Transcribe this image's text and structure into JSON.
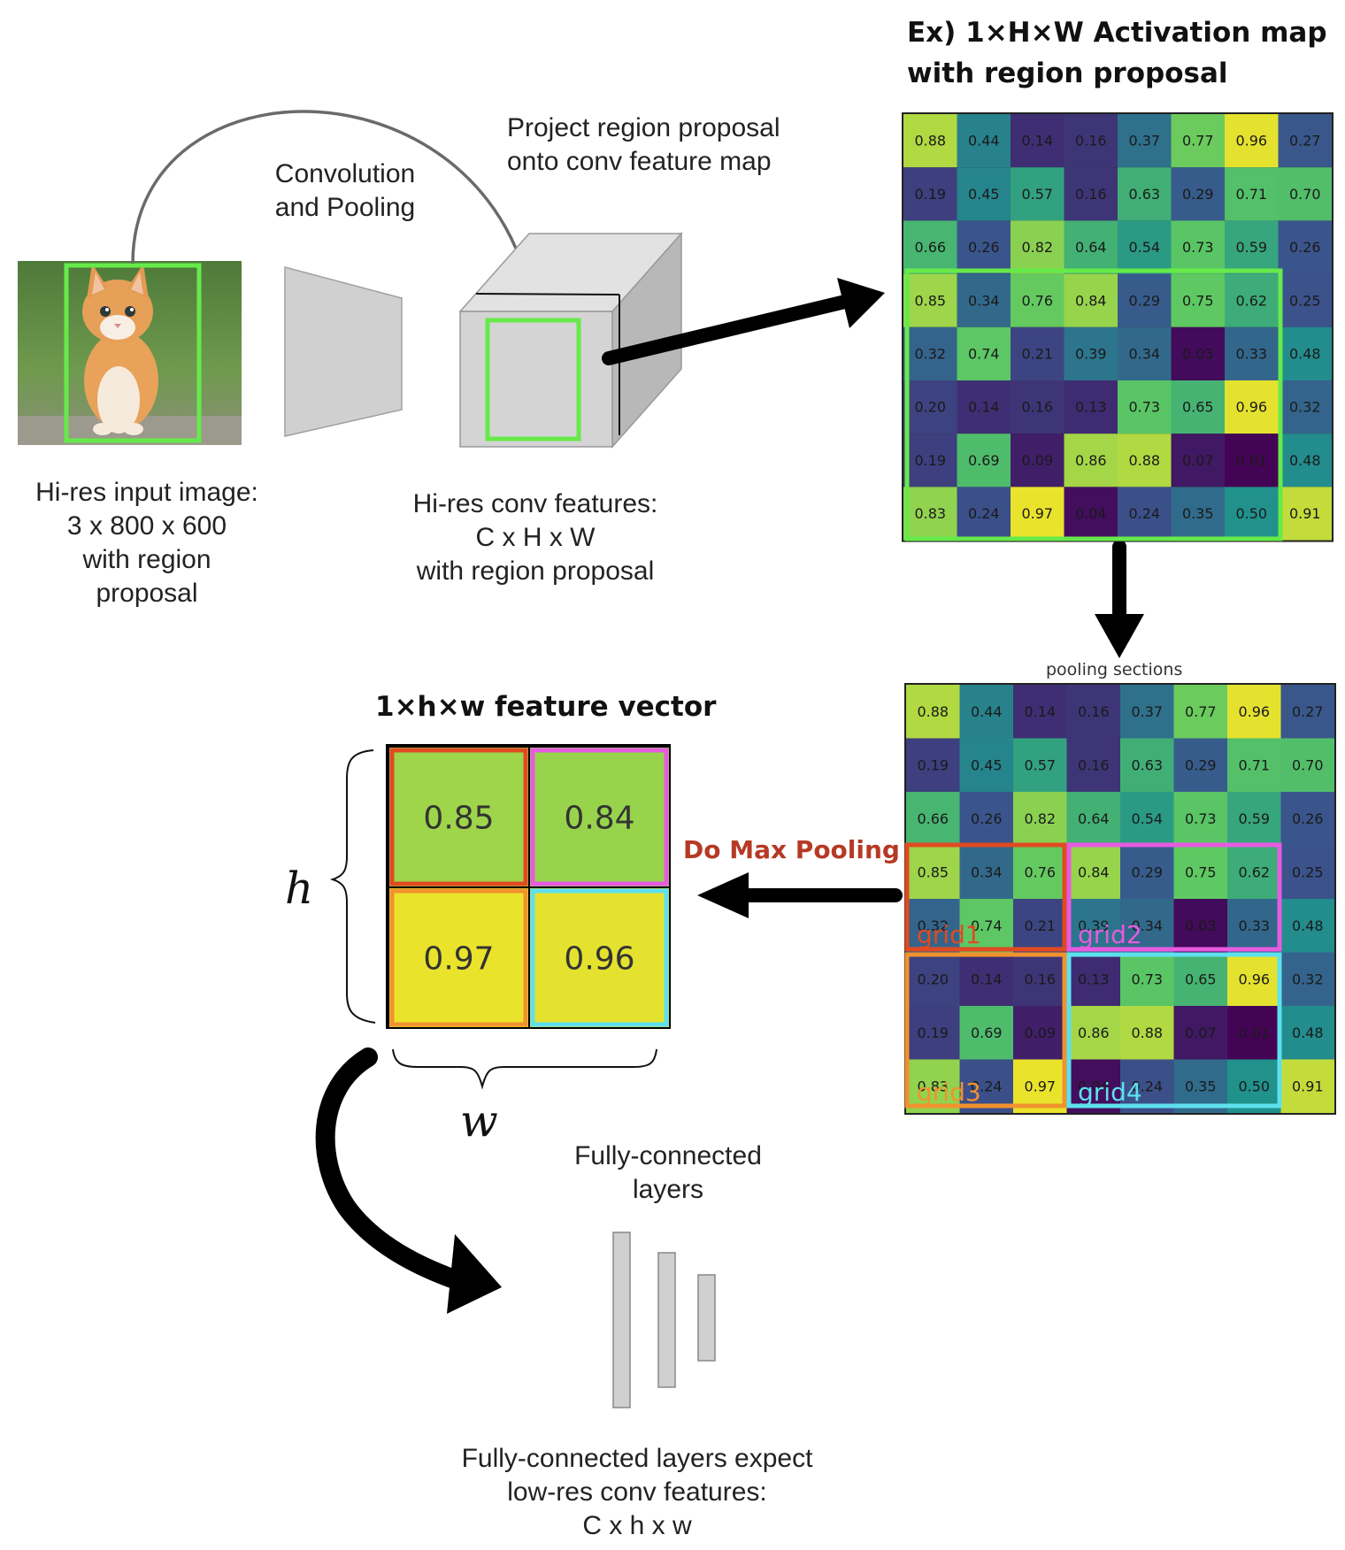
{
  "input_block": {
    "caption": [
      "Hi-res input image:",
      "3 x 800 x 600",
      "with region",
      "proposal"
    ],
    "picture": "kitten photo with green region proposal box"
  },
  "conv_label": [
    "Convolution",
    "and Pooling"
  ],
  "project_label": [
    "Project region proposal",
    "onto conv feature map"
  ],
  "conv_features_caption": [
    "Hi-res conv features:",
    "C x H x W",
    "with region proposal"
  ],
  "activation_title": [
    "Ex) 1×H×W Activation map",
    "with region proposal"
  ],
  "activation_map": [
    [
      "0.88",
      "0.44",
      "0.14",
      "0.16",
      "0.37",
      "0.77",
      "0.96",
      "0.27"
    ],
    [
      "0.19",
      "0.45",
      "0.57",
      "0.16",
      "0.63",
      "0.29",
      "0.71",
      "0.70"
    ],
    [
      "0.66",
      "0.26",
      "0.82",
      "0.64",
      "0.54",
      "0.73",
      "0.59",
      "0.26"
    ],
    [
      "0.85",
      "0.34",
      "0.76",
      "0.84",
      "0.29",
      "0.75",
      "0.62",
      "0.25"
    ],
    [
      "0.32",
      "0.74",
      "0.21",
      "0.39",
      "0.34",
      "0.03",
      "0.33",
      "0.48"
    ],
    [
      "0.20",
      "0.14",
      "0.16",
      "0.13",
      "0.73",
      "0.65",
      "0.96",
      "0.32"
    ],
    [
      "0.19",
      "0.69",
      "0.09",
      "0.86",
      "0.88",
      "0.07",
      "0.01",
      "0.48"
    ],
    [
      "0.83",
      "0.24",
      "0.97",
      "0.04",
      "0.24",
      "0.35",
      "0.50",
      "0.91"
    ]
  ],
  "pooling_title": "pooling sections",
  "grid_labels": [
    "grid1",
    "grid2",
    "grid3",
    "grid4"
  ],
  "max_pooling_label": "Do Max Pooling",
  "feature_vector_title": "1×h×w feature vector",
  "feature_vector": [
    [
      "0.85",
      "0.84"
    ],
    [
      "0.97",
      "0.96"
    ]
  ],
  "h_label": "h",
  "w_label": "w",
  "fc_label": [
    "Fully-connected",
    "layers"
  ],
  "fc_caption": [
    "Fully-connected layers expect",
    "low-res conv features:",
    "C x h x w"
  ],
  "colors": {
    "region_green": "#66ea4a",
    "grid1": "#e04a22",
    "grid2": "#e65be0",
    "grid3": "#f0922e",
    "grid4": "#5ee0ee",
    "max_pool_text": "#b53a26",
    "box_gray": "#d0d0d0",
    "arrow": "#000000"
  }
}
